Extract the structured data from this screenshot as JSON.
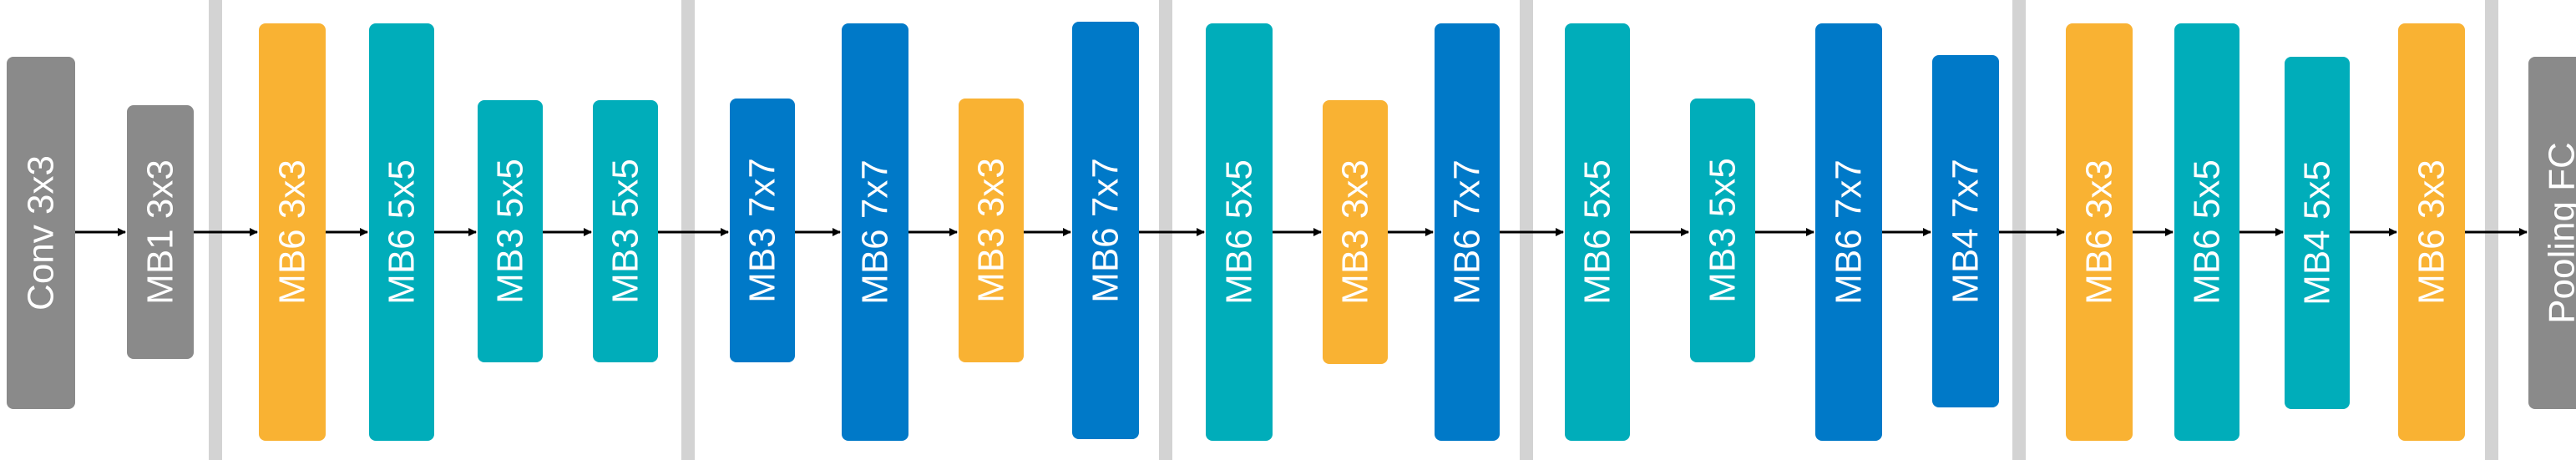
{
  "colors": {
    "gray": "#8A8A8A",
    "orange": "#F9B233",
    "teal": "#00ADBA",
    "blue": "#0079C8",
    "separator": "#D3D3D3",
    "arrow": "#000000",
    "label": "#FFFFFF"
  },
  "blocks": [
    {
      "label": "Conv 3x3",
      "color": "gray"
    },
    {
      "label": "MB1 3x3",
      "color": "gray"
    },
    {
      "label": "MB6 3x3",
      "color": "orange"
    },
    {
      "label": "MB6 5x5",
      "color": "teal"
    },
    {
      "label": "MB3 5x5",
      "color": "teal"
    },
    {
      "label": "MB3 5x5",
      "color": "teal"
    },
    {
      "label": "MB3 7x7",
      "color": "blue"
    },
    {
      "label": "MB6 7x7",
      "color": "blue"
    },
    {
      "label": "MB3 3x3",
      "color": "orange"
    },
    {
      "label": "MB6 7x7",
      "color": "blue"
    },
    {
      "label": "MB6 5x5",
      "color": "teal"
    },
    {
      "label": "MB3 3x3",
      "color": "orange"
    },
    {
      "label": "MB6 7x7",
      "color": "blue"
    },
    {
      "label": "MB6 5x5",
      "color": "teal"
    },
    {
      "label": "MB3 5x5",
      "color": "teal"
    },
    {
      "label": "MB6 7x7",
      "color": "blue"
    },
    {
      "label": "MB4 7x7",
      "color": "blue"
    },
    {
      "label": "MB6 3x3",
      "color": "orange"
    },
    {
      "label": "MB6 5x5",
      "color": "teal"
    },
    {
      "label": "MB4 5x5",
      "color": "teal"
    },
    {
      "label": "MB6 3x3",
      "color": "orange"
    },
    {
      "label": "Pooling FC",
      "color": "gray"
    }
  ]
}
